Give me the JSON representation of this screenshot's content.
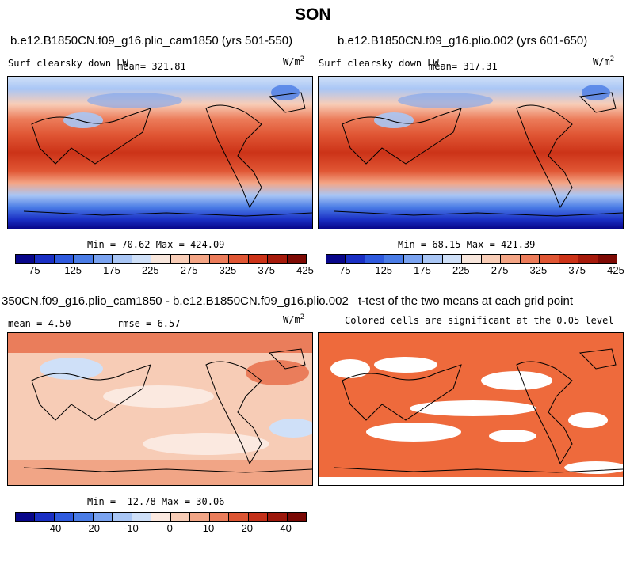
{
  "figure_title": "SON",
  "panels": [
    {
      "title": "b.e12.B1850CN.f09_g16.plio_cam1850 (yrs 501-550)",
      "left_label": "Surf clearsky down LW",
      "mean_label": "mean= 321.81",
      "units": "W/m",
      "units_sup": "2",
      "minmax": "Min =  70.62 Max = 424.09"
    },
    {
      "title": "b.e12.B1850CN.f09_g16.plio.002 (yrs 601-650)",
      "left_label": "Surf clearsky down LW",
      "mean_label": "mean= 317.31",
      "units": "W/m",
      "units_sup": "2",
      "minmax": "Min =  68.15 Max = 421.39"
    },
    {
      "title": "350CN.f09_g16.plio_cam1850 - b.e12.B1850CN.f09_g16.plio.002",
      "mean_label": "mean =   4.50",
      "rmse_label": "rmse =   6.57",
      "units": "W/m",
      "units_sup": "2",
      "minmax": "Min = -12.78 Max =  30.06"
    },
    {
      "title": "t-test of the two means at each grid point",
      "subtitle": "Colored cells are significant at the 0.05 level"
    }
  ],
  "colorbars": {
    "abs": {
      "colors": [
        "#08068a",
        "#1a2fc4",
        "#2f5ade",
        "#4a7ce6",
        "#7aa3f0",
        "#a9c6f5",
        "#cfe0f8",
        "#f7e6dc",
        "#f8cdb7",
        "#f4a585",
        "#ec7c5a",
        "#e05634",
        "#cc3318",
        "#a61a0b",
        "#7e0a04"
      ],
      "ticks": [
        "75",
        "125",
        "175",
        "225",
        "275",
        "325",
        "375",
        "425"
      ]
    },
    "diff": {
      "colors": [
        "#08068a",
        "#1a2fc4",
        "#2f5ade",
        "#4a7ce6",
        "#7aa3f0",
        "#a9c6f5",
        "#cfe0f8",
        "#fbe9e0",
        "#f7ccb6",
        "#f1a586",
        "#ea7d5b",
        "#dc5533",
        "#c4311a",
        "#9c170b",
        "#7a0905"
      ],
      "ticks": [
        "-40",
        "-20",
        "-10",
        "0",
        "10",
        "20",
        "40"
      ]
    }
  },
  "colors": {
    "significant": "#ee6a3c",
    "not_significant": "#ffffff"
  }
}
